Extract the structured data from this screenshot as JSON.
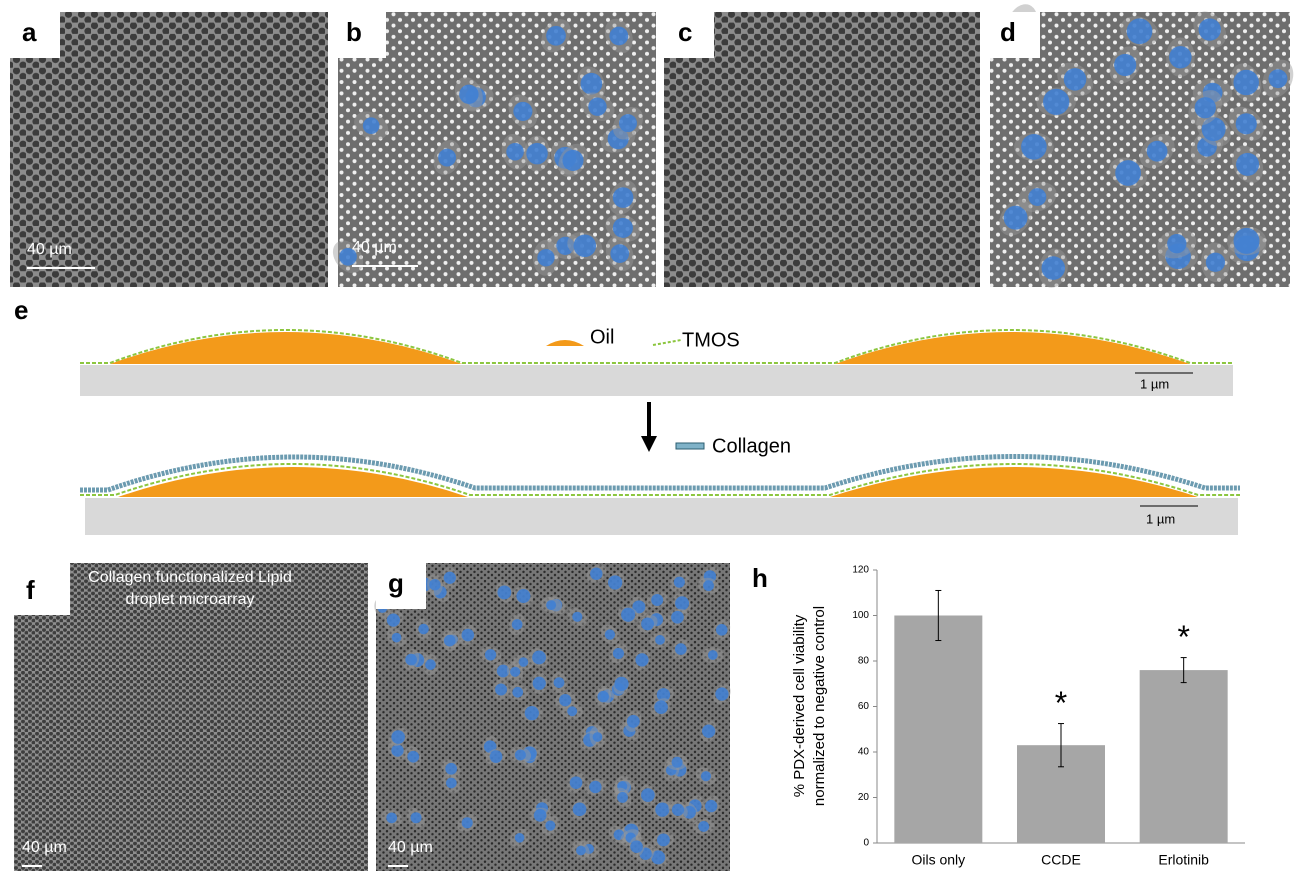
{
  "micrographs": [
    {
      "label": "a",
      "scale": "40 µm"
    },
    {
      "label": "b",
      "scale": "40 µm"
    },
    {
      "label": "c"
    },
    {
      "label": "d"
    },
    {
      "label": "f",
      "scale": "40 µm",
      "caption": [
        "Collagen functionalized Lipid",
        "droplet microarray"
      ]
    },
    {
      "label": "g",
      "scale": "40 µm"
    }
  ],
  "schematic": {
    "label": "e",
    "legend": [
      "Oil",
      "TMOS",
      "Collagen"
    ],
    "scale_bars": [
      "1 µm",
      "1 µm"
    ]
  },
  "chart_panel_label": "h",
  "chart_data": {
    "type": "bar",
    "categories": [
      "Oils only",
      "CCDE",
      "Erlotinib"
    ],
    "values": [
      100,
      43,
      76
    ],
    "errors": [
      11,
      9.5,
      5.5
    ],
    "annotations": [
      null,
      "*",
      "*"
    ],
    "color": "#a6a6a6",
    "ylabel": [
      "% PDX-derived cell viability",
      "normalized to negative control"
    ],
    "ylim": [
      0,
      120
    ],
    "yticks": [
      0,
      20,
      40,
      60,
      80,
      100,
      120
    ]
  }
}
